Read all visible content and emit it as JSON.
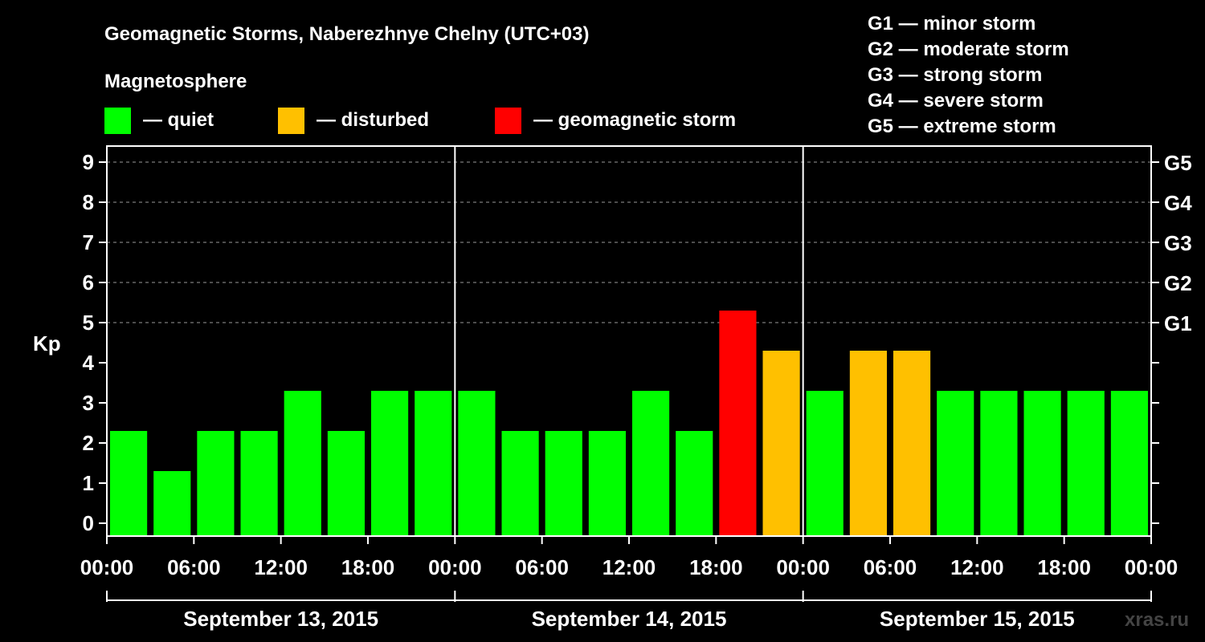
{
  "chart_data": {
    "type": "bar",
    "title": "Geomagnetic Storms, Naberezhnye Chelny (UTC+03)",
    "legend_title": "Magnetosphere",
    "legend": [
      {
        "label": "— quiet",
        "color": "#00ff00"
      },
      {
        "label": "— disturbed",
        "color": "#ffc000"
      },
      {
        "label": "— geomagnetic storm",
        "color": "#ff0000"
      }
    ],
    "g_scale": [
      "G1 — minor storm",
      "G2 — moderate storm",
      "G3 — strong storm",
      "G4 — severe storm",
      "G5 — extreme storm"
    ],
    "ylabel": "Kp",
    "ylim": [
      0,
      9
    ],
    "yticks": [
      "0",
      "1",
      "2",
      "3",
      "4",
      "5",
      "6",
      "7",
      "8",
      "9"
    ],
    "right_ticks": [
      {
        "kp": 5,
        "label": "G1"
      },
      {
        "kp": 6,
        "label": "G2"
      },
      {
        "kp": 7,
        "label": "G3"
      },
      {
        "kp": 8,
        "label": "G4"
      },
      {
        "kp": 9,
        "label": "G5"
      }
    ],
    "xticks": [
      "00:00",
      "06:00",
      "12:00",
      "18:00",
      "00:00",
      "06:00",
      "12:00",
      "18:00",
      "00:00",
      "06:00",
      "12:00",
      "18:00",
      "00:00"
    ],
    "days": [
      "September 13, 2015",
      "September 14, 2015",
      "September 15, 2015"
    ],
    "values": [
      2,
      1,
      2,
      2,
      3,
      2,
      3,
      3,
      3,
      2,
      2,
      2,
      3,
      2,
      5,
      4,
      3,
      4,
      4,
      3,
      3,
      3,
      3,
      3
    ],
    "colors": {
      "quiet": "#00ff00",
      "disturbed": "#ffc000",
      "storm": "#ff0000"
    },
    "thresholds": {
      "disturbed": 4,
      "storm": 5
    },
    "watermark": "xras.ru"
  }
}
